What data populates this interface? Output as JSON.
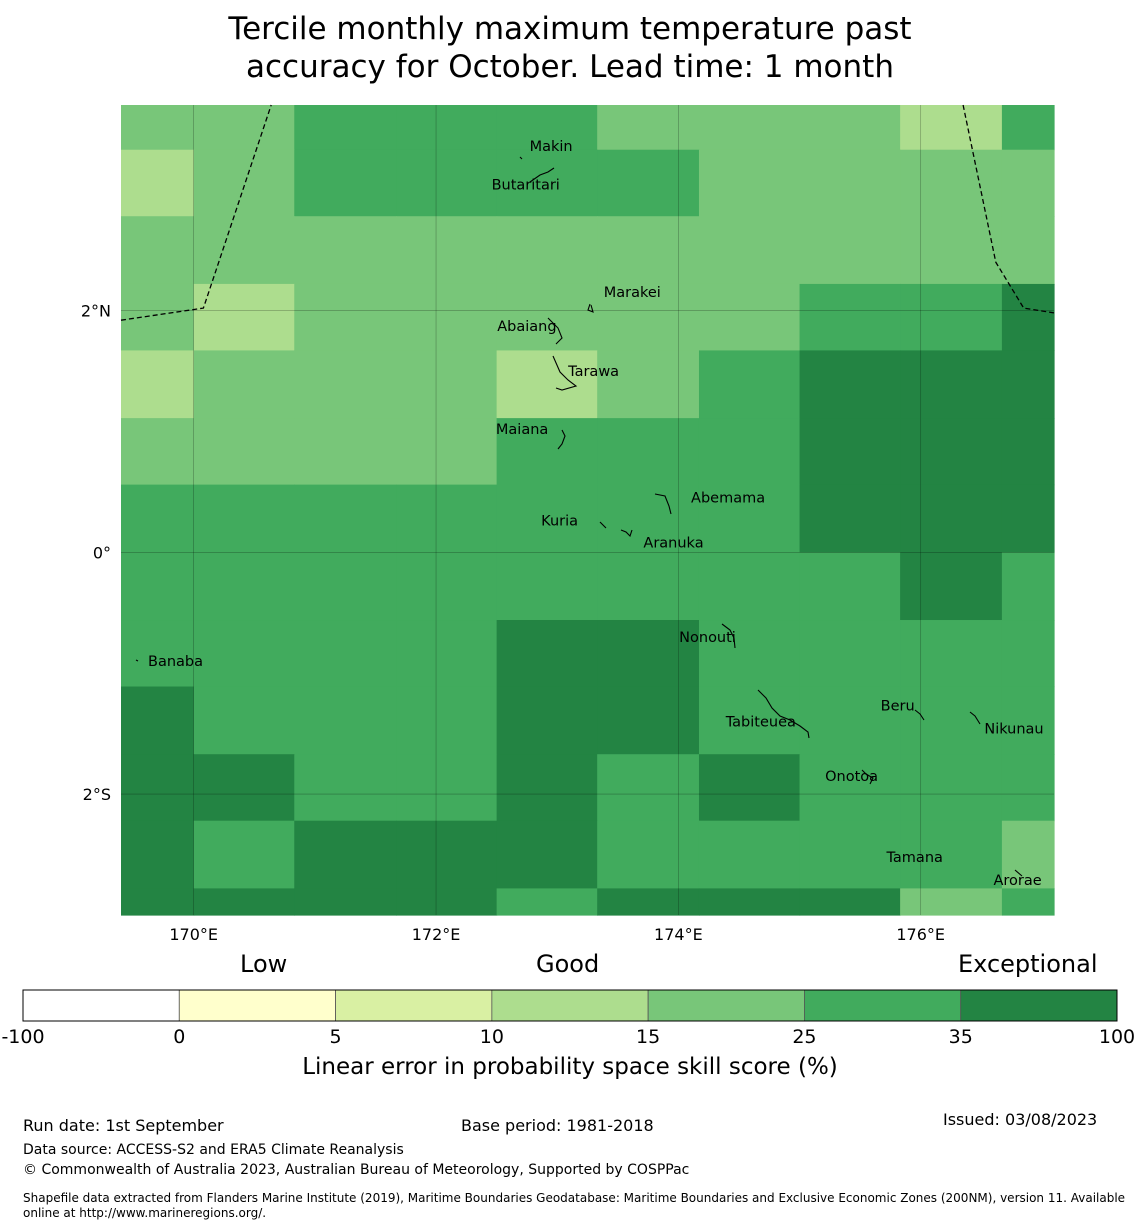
{
  "title": {
    "line1": "Tercile monthly maximum temperature past",
    "line2": "accuracy for October. Lead time: 1 month"
  },
  "map": {
    "lon_range": [
      169.4,
      177.1
    ],
    "lat_range": [
      -3.0,
      3.7
    ],
    "lon_ticks": [
      {
        "lon": 170,
        "label": "170°E"
      },
      {
        "lon": 172,
        "label": "172°E"
      },
      {
        "lon": 174,
        "label": "174°E"
      },
      {
        "lon": 176,
        "label": "176°E"
      }
    ],
    "lat_ticks": [
      {
        "lat": 2,
        "label": "2°N"
      },
      {
        "lat": 0,
        "label": "0°"
      },
      {
        "lat": -2,
        "label": "2°S"
      }
    ],
    "grid_lon_edges": [
      169.4,
      170.0,
      170.83,
      171.67,
      172.5,
      173.33,
      174.17,
      175.0,
      175.83,
      176.67,
      177.1
    ],
    "grid_lat_edges": [
      3.7,
      3.33,
      2.78,
      2.22,
      1.67,
      1.11,
      0.56,
      0.0,
      -0.56,
      -1.11,
      -1.67,
      -2.22,
      -2.78,
      -3.0
    ],
    "skill_classes": [
      [
        4,
        4,
        5,
        5,
        5,
        4,
        4,
        4,
        3,
        5
      ],
      [
        3,
        4,
        5,
        5,
        5,
        5,
        4,
        4,
        4,
        4
      ],
      [
        4,
        4,
        4,
        4,
        4,
        4,
        4,
        4,
        4,
        4
      ],
      [
        4,
        3,
        4,
        4,
        4,
        4,
        4,
        5,
        5,
        6
      ],
      [
        3,
        4,
        4,
        4,
        3,
        4,
        5,
        6,
        6,
        6
      ],
      [
        4,
        4,
        4,
        4,
        5,
        5,
        5,
        6,
        6,
        6
      ],
      [
        5,
        5,
        5,
        5,
        5,
        5,
        5,
        6,
        6,
        6
      ],
      [
        5,
        5,
        5,
        5,
        5,
        5,
        5,
        5,
        6,
        5
      ],
      [
        5,
        5,
        5,
        5,
        6,
        6,
        5,
        5,
        5,
        5
      ],
      [
        6,
        5,
        5,
        5,
        6,
        6,
        5,
        5,
        5,
        5
      ],
      [
        6,
        6,
        5,
        5,
        6,
        5,
        6,
        5,
        5,
        5
      ],
      [
        6,
        5,
        6,
        6,
        6,
        5,
        5,
        5,
        5,
        4
      ],
      [
        6,
        6,
        6,
        6,
        5,
        6,
        6,
        6,
        4,
        5
      ]
    ],
    "places": [
      {
        "name": "Makin",
        "lon": 172.95,
        "lat": 3.32
      },
      {
        "name": "Butaritari",
        "lon": 172.74,
        "lat": 3.0
      },
      {
        "name": "Marakei",
        "lon": 173.62,
        "lat": 2.11
      },
      {
        "name": "Abaiang",
        "lon": 172.75,
        "lat": 1.83
      },
      {
        "name": "Tarawa",
        "lon": 173.3,
        "lat": 1.46
      },
      {
        "name": "Maiana",
        "lon": 172.71,
        "lat": 0.98
      },
      {
        "name": "Abemama",
        "lon": 174.41,
        "lat": 0.41
      },
      {
        "name": "Kuria",
        "lon": 173.02,
        "lat": 0.22
      },
      {
        "name": "Aranuka",
        "lon": 173.96,
        "lat": 0.04
      },
      {
        "name": "Nonouti",
        "lon": 174.24,
        "lat": -0.74
      },
      {
        "name": "Banaba",
        "lon": 169.85,
        "lat": -0.94
      },
      {
        "name": "Beru",
        "lon": 175.81,
        "lat": -1.31
      },
      {
        "name": "Tabiteuea",
        "lon": 174.68,
        "lat": -1.44
      },
      {
        "name": "Nikunau",
        "lon": 176.77,
        "lat": -1.5
      },
      {
        "name": "Onotoa",
        "lon": 175.43,
        "lat": -1.89
      },
      {
        "name": "Tamana",
        "lon": 175.95,
        "lat": -2.56
      },
      {
        "name": "Arorae",
        "lon": 176.8,
        "lat": -2.75
      }
    ],
    "boundary_color": "#000000"
  },
  "categories": {
    "low": "Low",
    "good": "Good",
    "exceptional": "Exceptional"
  },
  "colorbar": {
    "ticks": [
      "-100",
      "0",
      "5",
      "10",
      "15",
      "25",
      "35",
      "100"
    ],
    "colors": [
      "#ffffff",
      "#ffffcc",
      "#d9f0a3",
      "#addd8e",
      "#78c679",
      "#41ab5d",
      "#238443"
    ],
    "label": "Linear error in probability space skill score (%)"
  },
  "footer": {
    "run_date": "Run date: 1st September",
    "base_period": "Base period: 1981-2018",
    "issued": "Issued: 03/08/2023",
    "data_source": "Data source: ACCESS-S2 and ERA5 Climate Reanalysis",
    "copyright": "© Commonwealth of Australia 2023, Australian Bureau of Meteorology, Supported by COSPPac",
    "shapefile": "Shapefile data extracted from Flanders Marine Institute (2019), Maritime Boundaries Geodatabase: Maritime Boundaries and Exclusive Economic Zones (200NM), version 11. Available online at http://www.marineregions.org/."
  }
}
